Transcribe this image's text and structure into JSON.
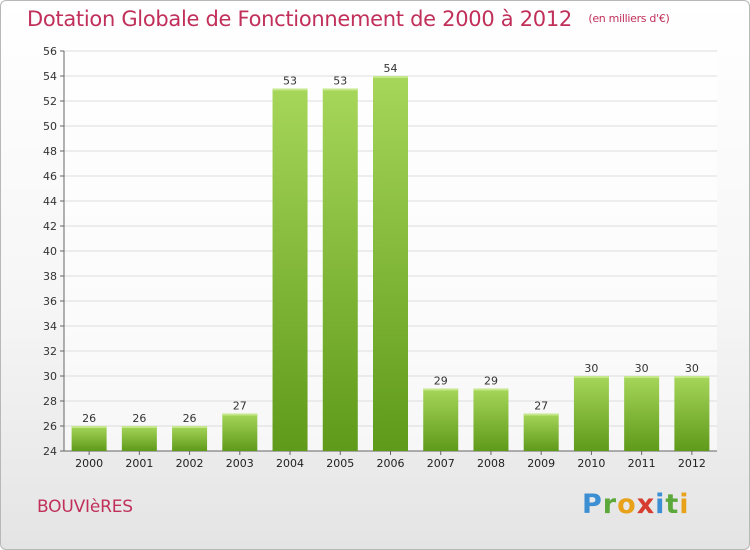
{
  "header": {
    "title": "Dotation Globale de Fonctionnement de 2000 à 2012",
    "subtitle": "(en milliers d'€)"
  },
  "commune": "BOUVIèRES",
  "logo": {
    "text": "Proxiti"
  },
  "colors": {
    "title": "#c0305a",
    "bar_top": "#a6d65a",
    "bar_bottom": "#5f9a1a",
    "grid": "#dddddd"
  },
  "chart_data": {
    "type": "bar",
    "title": "Dotation Globale de Fonctionnement de 2000 à 2012",
    "subtitle": "(en milliers d'€)",
    "categories": [
      "2000",
      "2001",
      "2002",
      "2003",
      "2004",
      "2005",
      "2006",
      "2007",
      "2008",
      "2009",
      "2010",
      "2011",
      "2012"
    ],
    "values": [
      26,
      26,
      26,
      27,
      53,
      53,
      54,
      29,
      29,
      27,
      30,
      30,
      30
    ],
    "ylim": [
      24,
      56
    ],
    "yticks": [
      24,
      26,
      28,
      30,
      32,
      34,
      36,
      38,
      40,
      42,
      44,
      46,
      48,
      50,
      52,
      54,
      56
    ],
    "grid": true,
    "data_labels": true
  }
}
